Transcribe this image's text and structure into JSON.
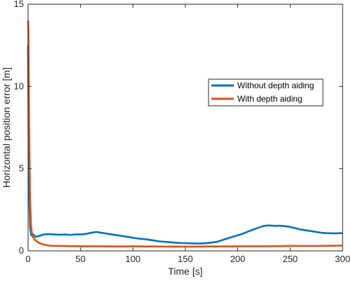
{
  "chart_data": {
    "type": "line",
    "title": "",
    "xlabel": "Time [s]",
    "ylabel": "Horizontal position error [m]",
    "xlim": [
      0,
      300
    ],
    "ylim": [
      0,
      15
    ],
    "xticks": [
      0,
      50,
      100,
      150,
      200,
      250,
      300
    ],
    "yticks": [
      0,
      5,
      10,
      15
    ],
    "grid": false,
    "legend_position": "upper-right",
    "series": [
      {
        "name": "Without depth aiding",
        "color": "#0072BD",
        "x": [
          0,
          0.5,
          1,
          2,
          3,
          5,
          7,
          10,
          15,
          20,
          25,
          30,
          35,
          40,
          45,
          50,
          55,
          60,
          65,
          70,
          75,
          80,
          85,
          90,
          95,
          100,
          105,
          110,
          115,
          120,
          125,
          130,
          135,
          140,
          145,
          150,
          155,
          160,
          165,
          170,
          175,
          180,
          185,
          190,
          195,
          200,
          205,
          210,
          215,
          220,
          225,
          230,
          235,
          240,
          245,
          250,
          255,
          260,
          265,
          270,
          275,
          280,
          285,
          290,
          295,
          300
        ],
        "y": [
          12.5,
          7.0,
          3.5,
          1.4,
          0.95,
          1.0,
          0.85,
          0.9,
          1.0,
          1.02,
          1.0,
          0.98,
          1.0,
          0.97,
          1.0,
          1.0,
          1.03,
          1.1,
          1.15,
          1.1,
          1.05,
          1.0,
          0.95,
          0.9,
          0.85,
          0.8,
          0.75,
          0.72,
          0.68,
          0.63,
          0.58,
          0.55,
          0.53,
          0.5,
          0.48,
          0.47,
          0.46,
          0.45,
          0.45,
          0.47,
          0.5,
          0.55,
          0.65,
          0.75,
          0.85,
          0.95,
          1.05,
          1.18,
          1.3,
          1.42,
          1.52,
          1.55,
          1.52,
          1.53,
          1.5,
          1.45,
          1.38,
          1.3,
          1.25,
          1.2,
          1.15,
          1.1,
          1.08,
          1.07,
          1.07,
          1.08
        ]
      },
      {
        "name": "With depth aiding",
        "color": "#D95319",
        "x": [
          0,
          0.3,
          0.6,
          1,
          1.5,
          2,
          3,
          4,
          6,
          8,
          10,
          12,
          15,
          20,
          25,
          30,
          40,
          50,
          60,
          70,
          80,
          90,
          100,
          110,
          120,
          130,
          140,
          150,
          160,
          170,
          180,
          190,
          200,
          210,
          220,
          230,
          240,
          250,
          260,
          270,
          280,
          290,
          300
        ],
        "y": [
          14.0,
          13.5,
          11.0,
          8.0,
          5.0,
          2.8,
          1.4,
          0.9,
          0.7,
          0.6,
          0.5,
          0.45,
          0.38,
          0.32,
          0.3,
          0.3,
          0.29,
          0.28,
          0.28,
          0.28,
          0.27,
          0.27,
          0.28,
          0.27,
          0.27,
          0.26,
          0.26,
          0.26,
          0.26,
          0.27,
          0.27,
          0.27,
          0.28,
          0.28,
          0.28,
          0.28,
          0.29,
          0.3,
          0.3,
          0.3,
          0.3,
          0.31,
          0.32
        ]
      }
    ]
  }
}
